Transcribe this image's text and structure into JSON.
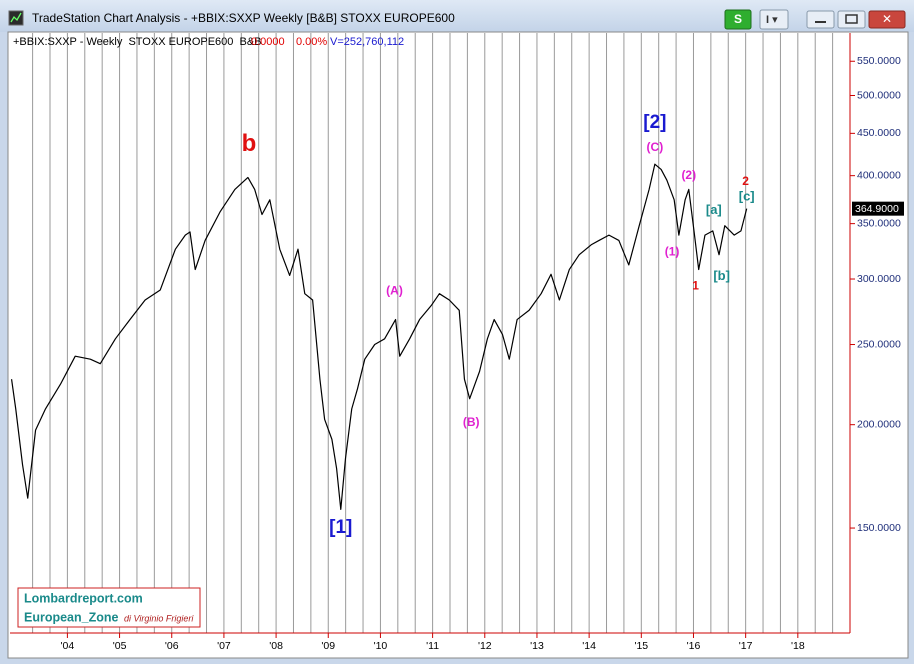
{
  "window": {
    "title": "TradeStation Chart Analysis - +BBIX:SXXP Weekly [B&B] STOXX EUROPE600",
    "button": "S"
  },
  "watermark": {
    "site": "Lombardreport.com",
    "zone": "European_Zone",
    "author": "di Virginio Frigieri"
  },
  "chart_data": {
    "type": "line",
    "symbol_info": "+BBIX:SXXP - Weekly  STOXX EUROPE600  B&B",
    "net_change": "0.0000",
    "pct_change": "0.00%",
    "volume": "V=252,760,112",
    "log_scale": true,
    "color": "#000000",
    "x": [
      2002.93,
      2003.01,
      2003.14,
      2003.24,
      2003.39,
      2003.58,
      2003.87,
      2004.15,
      2004.44,
      2004.63,
      2004.92,
      2005.2,
      2005.49,
      2005.78,
      2006.07,
      2006.26,
      2006.35,
      2006.45,
      2006.64,
      2006.93,
      2007.21,
      2007.46,
      2007.59,
      2007.73,
      2007.88,
      2008.07,
      2008.26,
      2008.42,
      2008.55,
      2008.7,
      2008.84,
      2008.93,
      2009.07,
      2009.16,
      2009.24,
      2009.33,
      2009.45,
      2009.56,
      2009.7,
      2009.89,
      2010.08,
      2010.29,
      2010.37,
      2010.56,
      2010.75,
      2010.98,
      2011.13,
      2011.32,
      2011.51,
      2011.61,
      2011.71,
      2011.9,
      2012.05,
      2012.18,
      2012.34,
      2012.47,
      2012.62,
      2012.85,
      2013.08,
      2013.27,
      2013.43,
      2013.62,
      2013.81,
      2014.04,
      2014.19,
      2014.38,
      2014.57,
      2014.76,
      2014.96,
      2015.15,
      2015.26,
      2015.38,
      2015.49,
      2015.63,
      2015.72,
      2015.84,
      2015.91,
      2016.01,
      2016.1,
      2016.22,
      2016.37,
      2016.49,
      2016.6,
      2016.78,
      2016.91,
      2017.02
    ],
    "values": [
      227,
      209,
      179,
      163,
      197,
      209,
      224,
      242,
      240,
      237,
      254,
      268,
      283,
      291,
      326,
      339,
      342,
      308,
      334,
      362,
      385,
      398,
      385,
      359,
      374,
      326,
      303,
      326,
      288,
      283,
      227,
      203,
      192,
      177,
      158,
      182,
      209,
      221,
      240,
      250,
      254,
      268,
      242,
      254,
      268,
      279,
      288,
      283,
      275,
      227,
      215,
      232,
      254,
      268,
      257,
      240,
      268,
      275,
      288,
      304,
      283,
      308,
      321,
      330,
      334,
      339,
      334,
      312,
      348,
      385,
      413,
      407,
      395,
      374,
      339,
      374,
      385,
      343,
      308,
      339,
      343,
      321,
      348,
      339,
      343,
      364.9
    ],
    "last_price": {
      "value": 364.9,
      "label": "364.9000"
    },
    "xlim": [
      2002.9,
      2019
    ],
    "xticks": [
      {
        "value": 2004,
        "label": "'04"
      },
      {
        "value": 2005,
        "label": "'05"
      },
      {
        "value": 2006,
        "label": "'06"
      },
      {
        "value": 2007,
        "label": "'07"
      },
      {
        "value": 2008,
        "label": "'08"
      },
      {
        "value": 2009,
        "label": "'09"
      },
      {
        "value": 2010,
        "label": "'10"
      },
      {
        "value": 2011,
        "label": "'11"
      },
      {
        "value": 2012,
        "label": "'12"
      },
      {
        "value": 2013,
        "label": "'13"
      },
      {
        "value": 2014,
        "label": "'14"
      },
      {
        "value": 2015,
        "label": "'15"
      },
      {
        "value": 2016,
        "label": "'16"
      },
      {
        "value": 2017,
        "label": "'17"
      },
      {
        "value": 2018,
        "label": "'18"
      }
    ],
    "ylim": [
      112,
      595
    ],
    "yticks": [
      {
        "value": 150,
        "label": "150.0000"
      },
      {
        "value": 200,
        "label": "200.0000"
      },
      {
        "value": 250,
        "label": "250.0000"
      },
      {
        "value": 300,
        "label": "300.0000"
      },
      {
        "value": 350,
        "label": "350.0000"
      },
      {
        "value": 400,
        "label": "400.0000"
      },
      {
        "value": 450,
        "label": "450.0000"
      },
      {
        "value": 500,
        "label": "500.0000"
      },
      {
        "value": 550,
        "label": "550.0000"
      }
    ],
    "grid": true,
    "annotations": [
      {
        "text": "b",
        "x": 2007.48,
        "y": 436,
        "color": "#e01010"
      },
      {
        "text": "[1]",
        "x": 2009.24,
        "y": 150,
        "color": "#1a1ad0"
      },
      {
        "text": "(A)",
        "x": 2010.27,
        "y": 290,
        "color": "#e020d0"
      },
      {
        "text": "(B)",
        "x": 2011.74,
        "y": 201,
        "color": "#e020d0"
      },
      {
        "text": "[2]",
        "x": 2015.26,
        "y": 463,
        "color": "#1a1ad0"
      },
      {
        "text": "(C)",
        "x": 2015.26,
        "y": 432,
        "color": "#e020d0"
      },
      {
        "text": "(2)",
        "x": 2015.91,
        "y": 400,
        "color": "#e020d0"
      },
      {
        "text": "(1)",
        "x": 2015.59,
        "y": 323,
        "color": "#e020d0"
      },
      {
        "text": "1",
        "x": 2016.04,
        "y": 294,
        "color": "#e01010"
      },
      {
        "text": "[a]",
        "x": 2016.39,
        "y": 363,
        "color": "#1a8a8a"
      },
      {
        "text": "[b]",
        "x": 2016.54,
        "y": 302,
        "color": "#1a8a8a"
      },
      {
        "text": "2",
        "x": 2017.0,
        "y": 393,
        "color": "#e01010"
      },
      {
        "text": "[c]",
        "x": 2017.02,
        "y": 377,
        "color": "#1a8a8a"
      }
    ]
  }
}
